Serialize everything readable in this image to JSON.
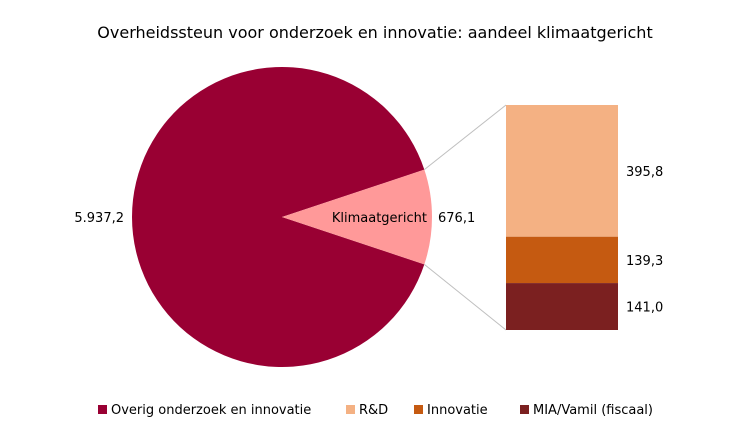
{
  "chart_data": {
    "type": "pie",
    "title": "Overheidssteun voor onderzoek en innovatie: aandeel klimaatgericht",
    "pie": {
      "slices": [
        {
          "name": "Overig onderzoek en innovatie",
          "value": 5937.2,
          "label": "5.937,2",
          "color": "#990033"
        },
        {
          "name": "Klimaatgericht",
          "value": 676.1,
          "label": "676,1",
          "color": "#FF9999"
        }
      ]
    },
    "breakdown": {
      "of": "Klimaatgericht",
      "segments": [
        {
          "name": "R&D",
          "value": 395.8,
          "label": "395,8",
          "color": "#F4B183"
        },
        {
          "name": "Innovatie",
          "value": 139.3,
          "label": "139,3",
          "color": "#C55A11"
        },
        {
          "name": "MIA/Vamil (fiscaal)",
          "value": 141.0,
          "label": "141,0",
          "color": "#7B2020"
        }
      ]
    },
    "legend": {
      "position": "bottom",
      "entries": [
        {
          "name": "Overig onderzoek en innovatie",
          "color": "#990033"
        },
        {
          "name": "R&D",
          "color": "#F4B183"
        },
        {
          "name": "Innovatie",
          "color": "#C55A11"
        },
        {
          "name": "MIA/Vamil (fiscaal)",
          "color": "#7B2020"
        }
      ]
    }
  }
}
